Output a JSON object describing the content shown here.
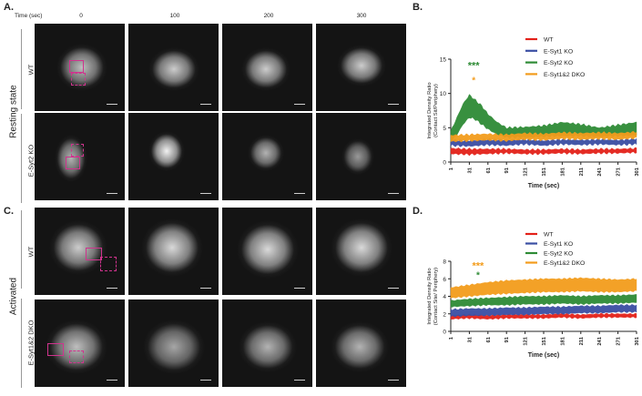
{
  "panels": {
    "A": "A.",
    "B": "B.",
    "C": "C.",
    "D": "D."
  },
  "micro": {
    "time_header": "Time (sec)",
    "time_points": [
      "0",
      "100",
      "200",
      "300"
    ],
    "top_group": "Resting state",
    "bottom_group": "Activated",
    "rows": [
      "WT",
      "E-Syt2 KO",
      "WT",
      "E-Syt1&2 DKO"
    ]
  },
  "charts": {
    "colors": {
      "wt": "#e32119",
      "syt1": "#3a4ea3",
      "syt2": "#2e8b35",
      "dko": "#f39c1c"
    },
    "sig_green": "#2e8b35",
    "sig_orange": "#f39c1c"
  },
  "chart_data": [
    {
      "type": "area",
      "title": "",
      "xlabel": "Time (sec)",
      "ylabel": "Integrated Density Ratio",
      "ylabel2": "(Contact Sit/Periphery)",
      "ylim": [
        0,
        15
      ],
      "yticks": [
        "0",
        "5",
        "10",
        "15"
      ],
      "xticks": [
        "1",
        "31",
        "61",
        "91",
        "121",
        "151",
        "181",
        "211",
        "241",
        "271",
        "301"
      ],
      "annotations": [
        {
          "text": "***",
          "color": "green",
          "x": 38,
          "y": 13.6
        },
        {
          "text": "*",
          "color": "orange",
          "x": 38,
          "y": 11.5
        }
      ],
      "series": [
        {
          "name": "WT",
          "key": "wt",
          "x": [
            1,
            31,
            61,
            91,
            121,
            151,
            181,
            211,
            241,
            271,
            301
          ],
          "lower": [
            1.2,
            1.1,
            1.2,
            1.3,
            1.2,
            1.2,
            1.3,
            1.2,
            1.3,
            1.3,
            1.4
          ],
          "upper": [
            2.0,
            1.9,
            1.9,
            1.9,
            1.8,
            1.8,
            1.9,
            1.8,
            1.9,
            1.9,
            2.0
          ]
        },
        {
          "name": "E-Syt1 KO",
          "key": "syt1",
          "x": [
            1,
            31,
            61,
            91,
            121,
            151,
            181,
            211,
            241,
            271,
            301
          ],
          "lower": [
            2.4,
            2.3,
            2.5,
            2.4,
            2.6,
            2.4,
            2.6,
            2.5,
            2.6,
            2.5,
            2.6
          ],
          "upper": [
            3.2,
            3.1,
            3.3,
            3.2,
            3.3,
            3.1,
            3.3,
            3.2,
            3.3,
            3.2,
            3.4
          ]
        },
        {
          "name": "E-Syt2 KO",
          "key": "syt2",
          "x": [
            1,
            11,
            21,
            31,
            41,
            51,
            61,
            76,
            91,
            121,
            151,
            181,
            211,
            241,
            271,
            301
          ],
          "lower": [
            3.0,
            4.0,
            5.5,
            6.5,
            6.2,
            5.5,
            4.8,
            4.0,
            3.6,
            3.6,
            3.7,
            3.8,
            3.8,
            3.7,
            3.8,
            3.9
          ],
          "upper": [
            4.5,
            6.5,
            8.5,
            9.8,
            9.0,
            8.2,
            7.0,
            5.8,
            5.0,
            5.1,
            5.3,
            5.8,
            5.5,
            5.0,
            5.4,
            5.8
          ]
        },
        {
          "name": "E-Syt1&2 DKO",
          "key": "dko",
          "x": [
            1,
            31,
            61,
            91,
            121,
            151,
            181,
            211,
            241,
            271,
            301
          ],
          "lower": [
            3.0,
            3.1,
            3.2,
            3.1,
            3.3,
            3.2,
            3.4,
            3.3,
            3.4,
            3.3,
            3.5
          ],
          "upper": [
            3.9,
            4.0,
            4.1,
            4.0,
            4.2,
            4.1,
            4.3,
            4.2,
            4.3,
            4.2,
            4.4
          ]
        }
      ],
      "legend": "top-right"
    },
    {
      "type": "area",
      "title": "",
      "xlabel": "Time (sec)",
      "ylabel": "Integrated Density Ratio",
      "ylabel2": "(Contact Site/ Periphery)",
      "ylim": [
        0,
        8
      ],
      "yticks": [
        "0",
        "2",
        "4",
        "6",
        "8"
      ],
      "xticks": [
        "1",
        "31",
        "61",
        "91",
        "121",
        "151",
        "181",
        "211",
        "241",
        "271",
        "301"
      ],
      "annotations": [
        {
          "text": "***",
          "color": "orange",
          "x": 45,
          "y": 7.1
        },
        {
          "text": "*",
          "color": "green",
          "x": 45,
          "y": 6.1
        }
      ],
      "series": [
        {
          "name": "WT",
          "key": "wt",
          "x": [
            1,
            31,
            61,
            91,
            121,
            151,
            181,
            211,
            241,
            271,
            301
          ],
          "lower": [
            1.4,
            1.5,
            1.4,
            1.5,
            1.5,
            1.5,
            1.6,
            1.5,
            1.6,
            1.6,
            1.6
          ],
          "upper": [
            1.8,
            1.9,
            1.8,
            1.9,
            1.9,
            1.9,
            2.0,
            1.9,
            2.0,
            2.0,
            2.0
          ]
        },
        {
          "name": "E-Syt1 KO",
          "key": "syt1",
          "x": [
            1,
            31,
            61,
            91,
            121,
            151,
            181,
            211,
            241,
            271,
            301
          ],
          "lower": [
            1.7,
            1.8,
            1.8,
            1.9,
            1.9,
            2.0,
            2.0,
            2.1,
            2.1,
            2.2,
            2.2
          ],
          "upper": [
            2.5,
            2.6,
            2.6,
            2.7,
            2.7,
            2.8,
            2.8,
            2.9,
            2.9,
            3.0,
            3.0
          ]
        },
        {
          "name": "E-Syt2 KO",
          "key": "syt2",
          "x": [
            1,
            31,
            61,
            91,
            121,
            151,
            181,
            211,
            241,
            271,
            301
          ],
          "lower": [
            2.8,
            2.9,
            3.0,
            3.0,
            3.1,
            3.1,
            3.2,
            3.1,
            3.2,
            3.2,
            3.3
          ],
          "upper": [
            3.5,
            3.7,
            3.8,
            3.9,
            4.0,
            4.0,
            4.1,
            4.0,
            4.1,
            4.1,
            4.2
          ]
        },
        {
          "name": "E-Syt1&2 DKO",
          "key": "dko",
          "x": [
            1,
            31,
            61,
            91,
            121,
            151,
            181,
            211,
            241,
            271,
            301
          ],
          "lower": [
            3.8,
            4.0,
            4.2,
            4.3,
            4.4,
            4.5,
            4.5,
            4.6,
            4.5,
            4.5,
            4.6
          ],
          "upper": [
            5.0,
            5.3,
            5.6,
            5.8,
            5.9,
            6.0,
            6.0,
            6.1,
            6.0,
            5.9,
            6.0
          ]
        }
      ],
      "legend": "top-right"
    }
  ]
}
